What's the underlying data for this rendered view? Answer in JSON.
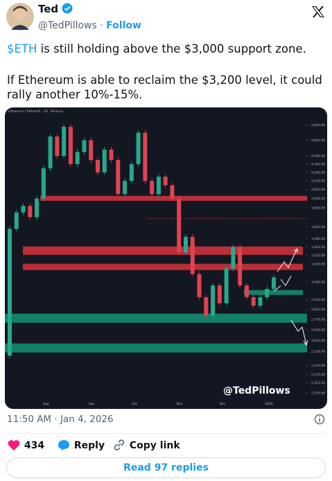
{
  "author": {
    "name": "Ted",
    "handle": "@TedPillows",
    "follow": "Follow"
  },
  "text": {
    "cashtag": "$ETH",
    "line1": "is still holding above the $3,000 support zone.",
    "para2": "If Ethereum is able to reclaim the $3,200 level, it could rally another 10%-15%."
  },
  "chart_data": {
    "type": "candlestick",
    "title": "Ethereum / TetherUS · 1D · Binance",
    "watermark": "@TedPillows",
    "x_labels": [
      "Aug",
      "Sep",
      "Oct",
      "Nov",
      "Dec",
      "2026"
    ],
    "open": 2500,
    "values": [
      3580,
      3750,
      3820,
      3700,
      3900,
      4250,
      4650,
      4400,
      4780,
      4300,
      4450,
      4600,
      4350,
      4200,
      4480,
      4350,
      3950,
      4100,
      4300,
      4700,
      4100,
      3950,
      4150,
      4050,
      3900,
      3350,
      3500,
      3150,
      2950,
      2800,
      3050,
      2900,
      3200,
      3400,
      3050,
      2950,
      2880,
      2950,
      3020,
      3120
    ],
    "ylim": [
      2180,
      4970
    ],
    "log_scale": true,
    "yticks": [
      {
        "value": 4800,
        "label": "4,800.00"
      },
      {
        "value": 4600,
        "label": "4,600.00"
      },
      {
        "value": 4400,
        "label": "4,400.00"
      },
      {
        "value": 4300,
        "label": "4,300.00"
      },
      {
        "value": 4200,
        "label": "4,200.00"
      },
      {
        "value": 4100,
        "label": "4,100.00"
      },
      {
        "value": 4000,
        "label": "4,000.00"
      },
      {
        "value": 3900,
        "label": "3,900.00"
      },
      {
        "value": 3800,
        "label": "3,800.00"
      },
      {
        "value": 3600,
        "label": "3,600.00"
      },
      {
        "value": 3480,
        "label": "3,480.00"
      },
      {
        "value": 3400,
        "label": "3,400.00"
      },
      {
        "value": 3320,
        "label": "3,320.00"
      },
      {
        "value": 3240,
        "label": "3,240.00"
      },
      {
        "value": 3080,
        "label": "3,080.00"
      },
      {
        "value": 2930,
        "label": "2,930.00"
      },
      {
        "value": 2850,
        "label": "2,850.00"
      },
      {
        "value": 2770,
        "label": "2,770.00"
      },
      {
        "value": 2690,
        "label": "2,690.00"
      },
      {
        "value": 2610,
        "label": "2,610.00"
      },
      {
        "value": 2530,
        "label": "2,530.00"
      },
      {
        "value": 2430,
        "label": "2,430.00"
      },
      {
        "value": 2370,
        "label": "2,370.00"
      },
      {
        "value": 2315,
        "label": "2,315.00"
      },
      {
        "value": 2250,
        "label": "2,250.00"
      }
    ],
    "zones": [
      {
        "range": [
          3876,
          3930
        ],
        "color": "#c9313c"
      },
      {
        "range": [
          3326,
          3406
        ],
        "color": "#c9313c"
      },
      {
        "range": [
          3186,
          3243
        ],
        "color": "#c9313c"
      },
      {
        "range": [
          2969,
          3010
        ],
        "color": "#138a70"
      },
      {
        "range": [
          2745,
          2816
        ],
        "color": "#138a70"
      },
      {
        "range": [
          2523,
          2588
        ],
        "color": "#138a70"
      }
    ],
    "level": 3684,
    "up_color": "#26a98d",
    "down_color": "#e0434f"
  },
  "timestamp": "11:50 AM · Jan 4, 2026",
  "likes": 434,
  "actions": {
    "reply": "Reply",
    "copy": "Copy link"
  },
  "read_replies": "Read 97 replies"
}
